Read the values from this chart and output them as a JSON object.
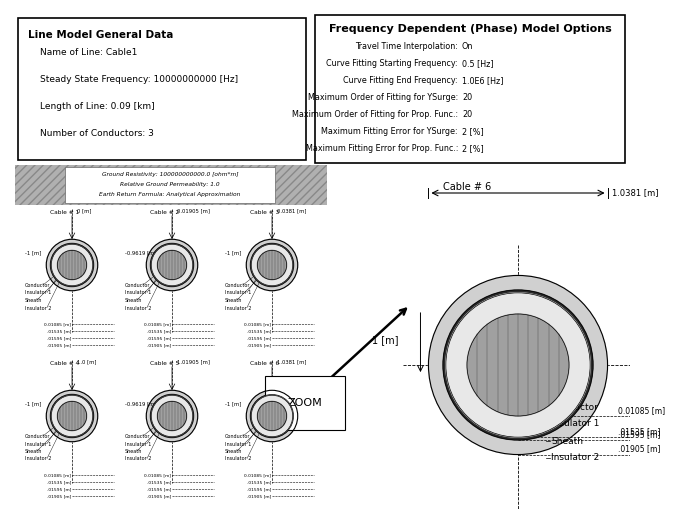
{
  "fig_width": 6.2,
  "fig_height": 4.99,
  "bg_color": "#ffffff",
  "box1_title": "Line Model General Data",
  "box1_lines": [
    "Name of Line: Cable1",
    "Steady State Frequency: 10000000000 [Hz]",
    "Length of Line: 0.09 [km]",
    "Number of Conductors: 3"
  ],
  "box2_title": "Frequency Dependent (Phase) Model Options",
  "box2_lines": [
    [
      "Travel Time Interpolation:",
      "On"
    ],
    [
      "Curve Fitting Starting Frequency:",
      "0.5 [Hz]"
    ],
    [
      "Curve Fitting End Frequency:",
      "1.0E6 [Hz]"
    ],
    [
      "Maximum Order of Fitting for YSurge:",
      "20"
    ],
    [
      "Maximum Order of Fitting for Prop. Func.:",
      "20"
    ],
    [
      "Maximum Fitting Error for YSurge:",
      "2 [%]"
    ],
    [
      "Maximum Fitting Error for Prop. Func.:",
      "2 [%]"
    ]
  ],
  "ground_text": [
    "Ground Resistivity: 100000000000.0 [ohm*m]",
    "Relative Ground Permeability: 1.0",
    "Earth Return Formula: Analytical Approximation"
  ],
  "cable_radii": {
    "conductor": 0.01085,
    "insulator1": 0.01535,
    "sheath": 0.01595,
    "insulator2": 0.01905
  },
  "x_labels_top": [
    "0 [m]",
    "0.01905 [m]",
    "0.0381 [m]"
  ],
  "x_labels_bot": [
    "1.0 [m]",
    "1.01905 [m]",
    "1.0381 [m]"
  ],
  "y_labels": [
    "-1 [m]",
    "-0.9619 [m]",
    "-1 [m]"
  ],
  "radii_labels": [
    "0.01085 [m]",
    ".01535 [m]",
    ".01595 [m]",
    ".01905 [m]"
  ],
  "layer_labels": [
    "Conductor",
    "Insulator 1",
    "Sheath",
    "Insulator 2"
  ],
  "zoom_text": "ZOOM",
  "cable6_label": "Cable # 6",
  "dim_label_h": "1.0381 [m]",
  "dim_label_v": "1 [m]"
}
